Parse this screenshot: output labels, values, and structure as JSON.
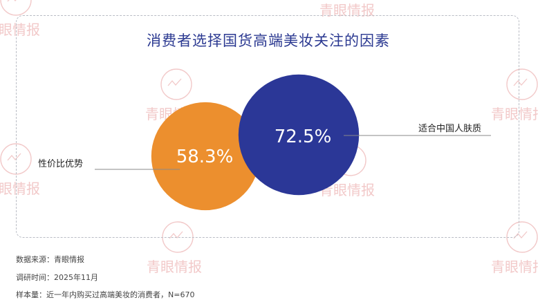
{
  "watermark": {
    "text": "青眼情报",
    "color": "#f2c9c9"
  },
  "chart_data": {
    "type": "venn",
    "title": "消费者选择国货高端美妆关注的因素",
    "sets": [
      {
        "label": "性价比优势",
        "value": 58.3,
        "value_label": "58.3%",
        "color": "#ec8f2e"
      },
      {
        "label": "适合中国人肤质",
        "value": 72.5,
        "value_label": "72.5%",
        "color": "#2b3797"
      }
    ]
  },
  "footer": {
    "source": "数据来源：青眼情报",
    "survey_date": "调研时间：2025年11月",
    "sample": "样本量：近一年内购买过高端美妆的消费者，N=670"
  }
}
